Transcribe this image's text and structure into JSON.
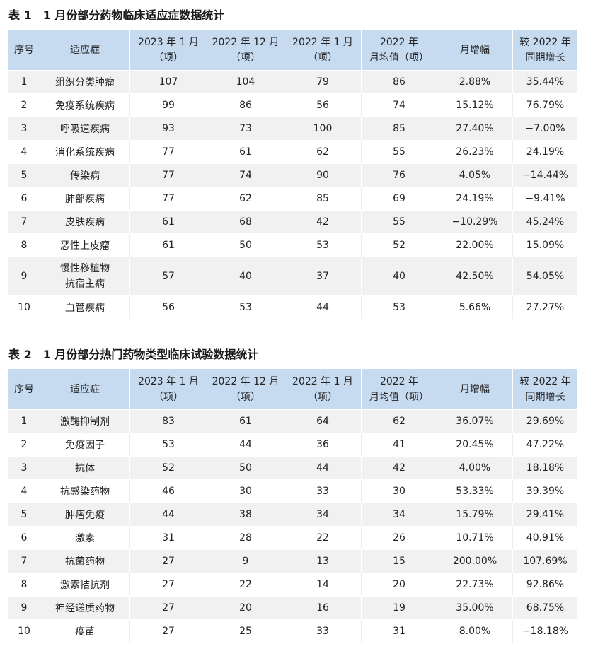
{
  "tables": [
    {
      "caption": "表 1　1 月份部分药物临床适应症数据统计",
      "headers": [
        "序号",
        "适应症",
        "2023 年 1 月\n（项）",
        "2022 年 12 月\n（项）",
        "2022 年 1 月\n（项）",
        "2022 年\n月均值（项）",
        "月增幅",
        "较 2022 年\n同期增长"
      ],
      "rows": [
        [
          "1",
          "组织分类肿瘤",
          "107",
          "104",
          "79",
          "86",
          "2.88%",
          "35.44%"
        ],
        [
          "2",
          "免疫系统疾病",
          "99",
          "86",
          "56",
          "74",
          "15.12%",
          "76.79%"
        ],
        [
          "3",
          "呼吸道疾病",
          "93",
          "73",
          "100",
          "85",
          "27.40%",
          "−7.00%"
        ],
        [
          "4",
          "消化系统疾病",
          "77",
          "61",
          "62",
          "55",
          "26.23%",
          "24.19%"
        ],
        [
          "5",
          "传染病",
          "77",
          "74",
          "90",
          "76",
          "4.05%",
          "−14.44%"
        ],
        [
          "6",
          "肺部疾病",
          "77",
          "62",
          "85",
          "69",
          "24.19%",
          "−9.41%"
        ],
        [
          "7",
          "皮肤疾病",
          "61",
          "68",
          "42",
          "55",
          "−10.29%",
          "45.24%"
        ],
        [
          "8",
          "恶性上皮瘤",
          "61",
          "50",
          "53",
          "52",
          "22.00%",
          "15.09%"
        ],
        [
          "9",
          "慢性移植物\n抗宿主病",
          "57",
          "40",
          "37",
          "40",
          "42.50%",
          "54.05%"
        ],
        [
          "10",
          "血管疾病",
          "56",
          "53",
          "44",
          "53",
          "5.66%",
          "27.27%"
        ]
      ]
    },
    {
      "caption": "表 2　1 月份部分热门药物类型临床试验数据统计",
      "headers": [
        "序号",
        "适应症",
        "2023 年 1 月\n（项）",
        "2022 年 12 月\n（项）",
        "2022 年 1 月\n（项）",
        "2022 年\n月均值（项）",
        "月增幅",
        "较 2022 年\n同期增长"
      ],
      "rows": [
        [
          "1",
          "激酶抑制剂",
          "83",
          "61",
          "64",
          "62",
          "36.07%",
          "29.69%"
        ],
        [
          "2",
          "免疫因子",
          "53",
          "44",
          "36",
          "41",
          "20.45%",
          "47.22%"
        ],
        [
          "3",
          "抗体",
          "52",
          "50",
          "44",
          "42",
          "4.00%",
          "18.18%"
        ],
        [
          "4",
          "抗感染药物",
          "46",
          "30",
          "33",
          "30",
          "53.33%",
          "39.39%"
        ],
        [
          "5",
          "肿瘤免疫",
          "44",
          "38",
          "34",
          "34",
          "15.79%",
          "29.41%"
        ],
        [
          "6",
          "激素",
          "31",
          "28",
          "22",
          "26",
          "10.71%",
          "40.91%"
        ],
        [
          "7",
          "抗菌药物",
          "27",
          "9",
          "13",
          "15",
          "200.00%",
          "107.69%"
        ],
        [
          "8",
          "激素拮抗剂",
          "27",
          "22",
          "14",
          "20",
          "22.73%",
          "92.86%"
        ],
        [
          "9",
          "神经递质药物",
          "27",
          "20",
          "16",
          "19",
          "35.00%",
          "68.75%"
        ],
        [
          "10",
          "疫苗",
          "27",
          "25",
          "33",
          "31",
          "8.00%",
          "−18.18%"
        ]
      ]
    }
  ]
}
